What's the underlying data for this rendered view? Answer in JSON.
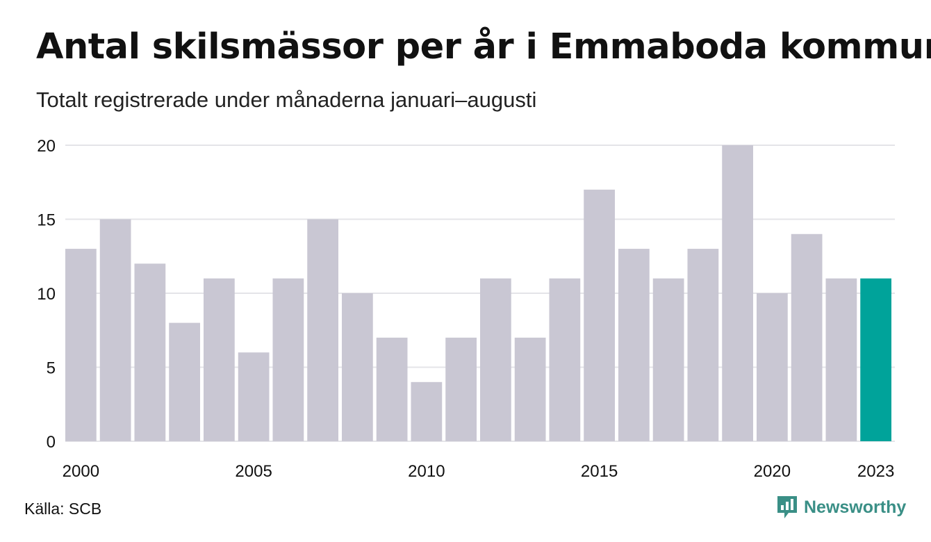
{
  "title": "Antal skilsmässor per år i Emmaboda kommun",
  "subtitle": "Totalt registrerade under månaderna januari–augusti",
  "source": "Källa: SCB",
  "brand": "Newsworthy",
  "colors": {
    "bar": "#c9c7d3",
    "highlight": "#00a39a",
    "grid": "#e4e4e8",
    "brand": "#3a8f86"
  },
  "chart_data": {
    "type": "bar",
    "categories": [
      2000,
      2001,
      2002,
      2003,
      2004,
      2005,
      2006,
      2007,
      2008,
      2009,
      2010,
      2011,
      2012,
      2013,
      2014,
      2015,
      2016,
      2017,
      2018,
      2019,
      2020,
      2021,
      2022,
      2023
    ],
    "values": [
      13,
      15,
      12,
      8,
      11,
      6,
      11,
      15,
      10,
      7,
      4,
      7,
      11,
      7,
      11,
      17,
      13,
      11,
      13,
      20,
      10,
      14,
      11,
      11
    ],
    "highlight_category": 2023,
    "xticks": [
      "2000",
      "2005",
      "2010",
      "2015",
      "2020",
      "2023"
    ],
    "yticks": [
      0,
      5,
      10,
      15,
      20
    ],
    "ylim": [
      0,
      20
    ],
    "grid": true,
    "xlabel": "",
    "ylabel": ""
  }
}
